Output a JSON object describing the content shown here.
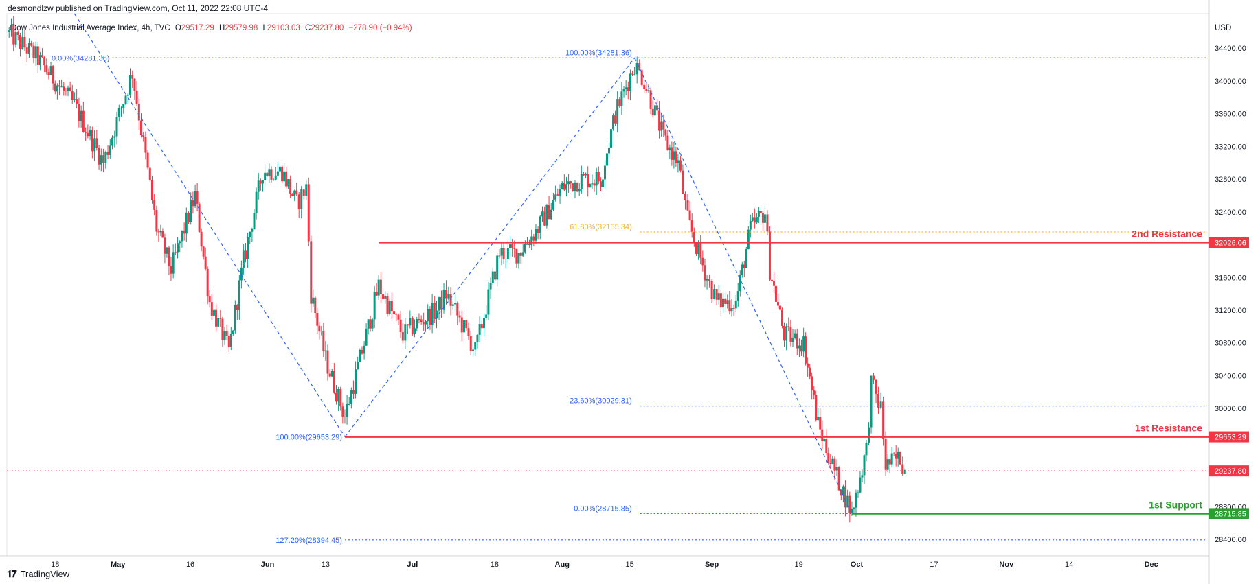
{
  "header": {
    "published_line": "desmondlzw published on TradingView.com, Oct 11, 2022 22:08 UTC-4"
  },
  "symbol": {
    "name": "Dow Jones Industrial Average Index, 4h, TVC",
    "open_label": "O",
    "open": "29517.29",
    "high_label": "H",
    "high": "29579.98",
    "low_label": "L",
    "low": "29103.03",
    "close_label": "C",
    "close": "29237.80",
    "change": "−278.90 (−0.94%)"
  },
  "currency": "USD",
  "footer": {
    "brand": "TradingView"
  },
  "colors": {
    "up": "#089981",
    "down": "#f23645",
    "fib_blue": "#2962ff",
    "fib_orange": "#f7b329",
    "resistance": "#f23645",
    "support": "#26a02f",
    "price_line": "#f23645"
  },
  "chart_data": {
    "type": "candlestick",
    "timeframe": "4h",
    "y_axis": {
      "ticks": [
        28400,
        28800,
        29200,
        29600,
        30000,
        30400,
        30800,
        31200,
        31600,
        32000,
        32400,
        32800,
        33200,
        33600,
        34000,
        34400
      ],
      "tick_labels": [
        "28400.00",
        "28800.00",
        "",
        "",
        "30000.00",
        "30400.00",
        "30800.00",
        "31200.00",
        "31600.00",
        "",
        "32400.00",
        "32800.00",
        "33200.00",
        "33600.00",
        "34000.00",
        "34400.00"
      ],
      "ylim": [
        28200,
        34820
      ]
    },
    "x_axis": {
      "ticks": [
        "18",
        "May",
        "16",
        "Jun",
        "13",
        "Jul",
        "18",
        "Aug",
        "15",
        "Sep",
        "19",
        "Oct",
        "17",
        "Nov",
        "14",
        "Dec"
      ],
      "dates": [
        "2022-04-18",
        "2022-05-01",
        "2022-05-16",
        "2022-06-01",
        "2022-06-13",
        "2022-07-01",
        "2022-07-18",
        "2022-08-01",
        "2022-08-15",
        "2022-09-01",
        "2022-09-19",
        "2022-10-01",
        "2022-10-17",
        "2022-11-01",
        "2022-11-14",
        "2022-12-01"
      ]
    },
    "price_path_key_points": [
      {
        "date": "2022-04-08",
        "price": 34600
      },
      {
        "date": "2022-04-14",
        "price": 34300
      },
      {
        "date": "2022-04-22",
        "price": 33700
      },
      {
        "date": "2022-04-28",
        "price": 33000
      },
      {
        "date": "2022-05-04",
        "price": 34100
      },
      {
        "date": "2022-05-09",
        "price": 32200
      },
      {
        "date": "2022-05-12",
        "price": 31700
      },
      {
        "date": "2022-05-17",
        "price": 32600
      },
      {
        "date": "2022-05-20",
        "price": 31300
      },
      {
        "date": "2022-05-24",
        "price": 30700
      },
      {
        "date": "2022-05-27",
        "price": 31800
      },
      {
        "date": "2022-05-31",
        "price": 32900
      },
      {
        "date": "2022-06-04",
        "price": 32900
      },
      {
        "date": "2022-06-07",
        "price": 32500
      },
      {
        "date": "2022-06-09",
        "price": 32700
      },
      {
        "date": "2022-06-10",
        "price": 31400
      },
      {
        "date": "2022-06-13",
        "price": 30600
      },
      {
        "date": "2022-06-17",
        "price": 29900
      },
      {
        "date": "2022-06-21",
        "price": 30800
      },
      {
        "date": "2022-06-24",
        "price": 31500
      },
      {
        "date": "2022-06-29",
        "price": 30900
      },
      {
        "date": "2022-07-01",
        "price": 31000
      },
      {
        "date": "2022-07-06",
        "price": 31200
      },
      {
        "date": "2022-07-08",
        "price": 31400
      },
      {
        "date": "2022-07-14",
        "price": 30700
      },
      {
        "date": "2022-07-19",
        "price": 31900
      },
      {
        "date": "2022-07-23",
        "price": 31900
      },
      {
        "date": "2022-07-27",
        "price": 32200
      },
      {
        "date": "2022-08-01",
        "price": 32700
      },
      {
        "date": "2022-08-05",
        "price": 32800
      },
      {
        "date": "2022-08-09",
        "price": 32800
      },
      {
        "date": "2022-08-12",
        "price": 33600
      },
      {
        "date": "2022-08-16",
        "price": 34200
      },
      {
        "date": "2022-08-18",
        "price": 34000
      },
      {
        "date": "2022-08-22",
        "price": 33300
      },
      {
        "date": "2022-08-25",
        "price": 33000
      },
      {
        "date": "2022-08-27",
        "price": 32300
      },
      {
        "date": "2022-08-31",
        "price": 31600
      },
      {
        "date": "2022-09-02",
        "price": 31300
      },
      {
        "date": "2022-09-06",
        "price": 31300
      },
      {
        "date": "2022-09-09",
        "price": 32200
      },
      {
        "date": "2022-09-12",
        "price": 32400
      },
      {
        "date": "2022-09-13",
        "price": 31700
      },
      {
        "date": "2022-09-16",
        "price": 30900
      },
      {
        "date": "2022-09-20",
        "price": 30800
      },
      {
        "date": "2022-09-23",
        "price": 29800
      },
      {
        "date": "2022-09-26",
        "price": 29300
      },
      {
        "date": "2022-09-30",
        "price": 28725
      },
      {
        "date": "2022-10-03",
        "price": 29500
      },
      {
        "date": "2022-10-04",
        "price": 30300
      },
      {
        "date": "2022-10-06",
        "price": 30000
      },
      {
        "date": "2022-10-07",
        "price": 29300
      },
      {
        "date": "2022-10-10",
        "price": 29400
      },
      {
        "date": "2022-10-11",
        "price": 29238
      }
    ],
    "horizontal_levels": [
      {
        "label": "2nd Resistance",
        "price": 32026.06,
        "price_label": "32026.06",
        "color": "#f23645",
        "start": "2022-06-24"
      },
      {
        "label": "1st Resistance",
        "price": 29653.29,
        "price_label": "29653.29",
        "color": "#f23645",
        "start": "2022-06-17"
      },
      {
        "label": "1st Support",
        "price": 28715.85,
        "price_label": "28715.85",
        "color": "#26a02f",
        "start": "2022-09-30"
      }
    ],
    "last_price": {
      "price": 29237.8,
      "price_label": "29237.80"
    },
    "fib_retracement_1": {
      "levels": [
        {
          "text": "0.00%(34281.36)",
          "price": 34281.36
        },
        {
          "text": "100.00%(29653.29)",
          "price": 29653.29
        },
        {
          "text": "127.20%(28394.45)",
          "price": 28394.45
        }
      ]
    },
    "fib_retracement_2": {
      "levels": [
        {
          "text": "100.00%(34281.36)",
          "price": 34281.36
        },
        {
          "text": "61.80%(32155.34)",
          "price": 32155.34,
          "color": "#f7b329"
        },
        {
          "text": "23.60%(30029.31)",
          "price": 30029.31
        },
        {
          "text": "0.00%(28715.85)",
          "price": 28715.85
        }
      ]
    },
    "trend_lines_dashed": [
      {
        "from": {
          "date": "2022-04-22",
          "price": 34820
        },
        "to": {
          "date": "2022-06-17",
          "price": 29653.29
        }
      },
      {
        "from": {
          "date": "2022-06-17",
          "price": 29653.29
        },
        "to": {
          "date": "2022-08-16",
          "price": 34281.36
        }
      },
      {
        "from": {
          "date": "2022-08-16",
          "price": 34281.36
        },
        "to": {
          "date": "2022-09-30",
          "price": 28715.85
        }
      }
    ]
  }
}
